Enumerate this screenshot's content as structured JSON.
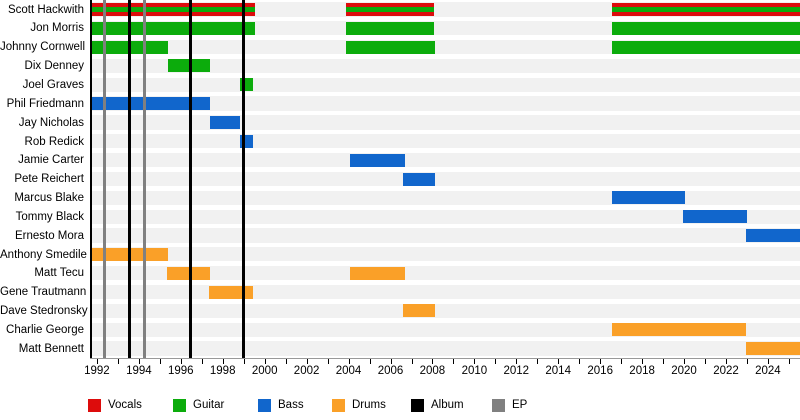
{
  "chart_data": {
    "type": "timeline",
    "description_of_visual": "Band-members gantt timeline with colored role bars, black album lines and gray EP lines",
    "xlim": [
      1991.67,
      2025.53
    ],
    "x_labeled_ticks": [
      1992,
      1994,
      1996,
      1998,
      2000,
      2002,
      2004,
      2006,
      2008,
      2010,
      2012,
      2014,
      2016,
      2018,
      2020,
      2022,
      2024
    ],
    "x_minor_tick_every": 1,
    "x_minor_tick_range": [
      1992,
      2025
    ],
    "grid": "off",
    "legend_position": "bottom",
    "roles_colors": {
      "vocals": "#dd0c0c",
      "guitar": "#0cac0c",
      "bass": "#1166cc",
      "drums": "#faa028",
      "album": "#000000",
      "ep": "#808080"
    },
    "row_track_color": "#f1f1f1",
    "members": [
      {
        "name": "Scott Hackwith",
        "roles": [
          "vocals",
          "guitar"
        ],
        "segments": [
          [
            1991.67,
            1999.55
          ],
          [
            2003.9,
            2008.1
          ],
          [
            2016.55,
            2025.53
          ]
        ]
      },
      {
        "name": "Jon Morris",
        "roles": [
          "guitar"
        ],
        "segments": [
          [
            1991.67,
            1999.55
          ],
          [
            2003.9,
            2008.1
          ],
          [
            2016.55,
            2025.53
          ]
        ]
      },
      {
        "name": "Johnny Cornwell",
        "roles": [
          "guitar"
        ],
        "segments": [
          [
            1991.67,
            1995.4
          ],
          [
            2003.9,
            2008.15
          ],
          [
            2016.55,
            2025.53
          ]
        ]
      },
      {
        "name": "Dix Denney",
        "roles": [
          "guitar"
        ],
        "segments": [
          [
            1995.4,
            1997.4
          ]
        ]
      },
      {
        "name": "Joel Graves",
        "roles": [
          "guitar"
        ],
        "segments": [
          [
            1998.8,
            1999.45
          ]
        ]
      },
      {
        "name": "Phil Friedmann",
        "roles": [
          "bass"
        ],
        "segments": [
          [
            1991.67,
            1997.4
          ]
        ]
      },
      {
        "name": "Jay Nicholas",
        "roles": [
          "bass"
        ],
        "segments": [
          [
            1997.4,
            1998.8
          ]
        ]
      },
      {
        "name": "Rob Redick",
        "roles": [
          "bass"
        ],
        "segments": [
          [
            1998.8,
            1999.45
          ]
        ]
      },
      {
        "name": "Jamie Carter",
        "roles": [
          "bass"
        ],
        "segments": [
          [
            2004.05,
            2006.7
          ]
        ]
      },
      {
        "name": "Pete Reichert",
        "roles": [
          "bass"
        ],
        "segments": [
          [
            2006.6,
            2008.1
          ]
        ]
      },
      {
        "name": "Marcus Blake",
        "roles": [
          "bass"
        ],
        "segments": [
          [
            2016.55,
            2020.05
          ]
        ]
      },
      {
        "name": "Tommy Black",
        "roles": [
          "bass"
        ],
        "segments": [
          [
            2019.95,
            2023.0
          ]
        ]
      },
      {
        "name": "Ernesto Mora",
        "roles": [
          "bass"
        ],
        "segments": [
          [
            2022.95,
            2025.53
          ]
        ]
      },
      {
        "name": "Anthony Smedile",
        "roles": [
          "drums"
        ],
        "segments": [
          [
            1991.67,
            1995.4
          ]
        ]
      },
      {
        "name": "Matt Tecu",
        "roles": [
          "drums"
        ],
        "segments": [
          [
            1995.35,
            1997.4
          ],
          [
            2004.05,
            2006.7
          ]
        ]
      },
      {
        "name": "Gene Trautmann",
        "roles": [
          "drums"
        ],
        "segments": [
          [
            1997.35,
            1999.45
          ]
        ]
      },
      {
        "name": "Dave Stedronsky",
        "roles": [
          "drums"
        ],
        "segments": [
          [
            2006.6,
            2008.1
          ]
        ]
      },
      {
        "name": "Charlie George",
        "roles": [
          "drums"
        ],
        "segments": [
          [
            2016.55,
            2022.95
          ]
        ]
      },
      {
        "name": "Matt Bennett",
        "roles": [
          "drums"
        ],
        "segments": [
          [
            2022.95,
            2025.53
          ]
        ]
      }
    ],
    "events": {
      "album_years": [
        1993.57,
        1996.48,
        1998.99
      ],
      "ep_years": [
        1992.38,
        1994.27
      ]
    },
    "legend": [
      {
        "label": "Vocals",
        "color": "#dd0c0c"
      },
      {
        "label": "Guitar",
        "color": "#0cac0c"
      },
      {
        "label": "Bass",
        "color": "#1166cc"
      },
      {
        "label": "Drums",
        "color": "#faa028"
      },
      {
        "label": "Album",
        "color": "#000000"
      },
      {
        "label": "EP",
        "color": "#808080"
      }
    ]
  }
}
